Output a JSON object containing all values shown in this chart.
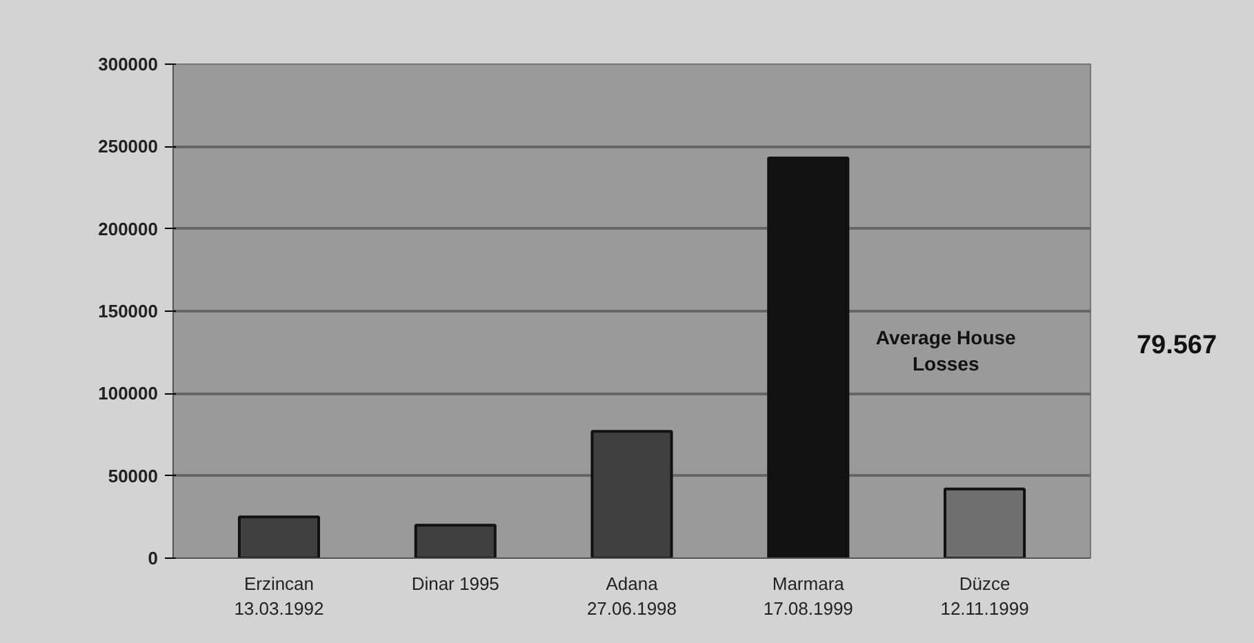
{
  "chart_data": {
    "type": "bar",
    "categories": [
      "Erzincan\n13.03.1992",
      "Dinar 1995",
      "Adana\n27.06.1998",
      "Marmara\n17.08.1999",
      "Düzce\n12.11.1999"
    ],
    "values": [
      25000,
      20000,
      77000,
      243000,
      42000
    ],
    "colors": [
      "#404040",
      "#404040",
      "#404040",
      "#111111",
      "#707070"
    ],
    "ylim": [
      0,
      300000
    ],
    "yticks": [
      0,
      50000,
      100000,
      150000,
      200000,
      250000,
      300000
    ],
    "grid": "y",
    "annotations": [
      "Average House Losses",
      "79.567"
    ]
  }
}
